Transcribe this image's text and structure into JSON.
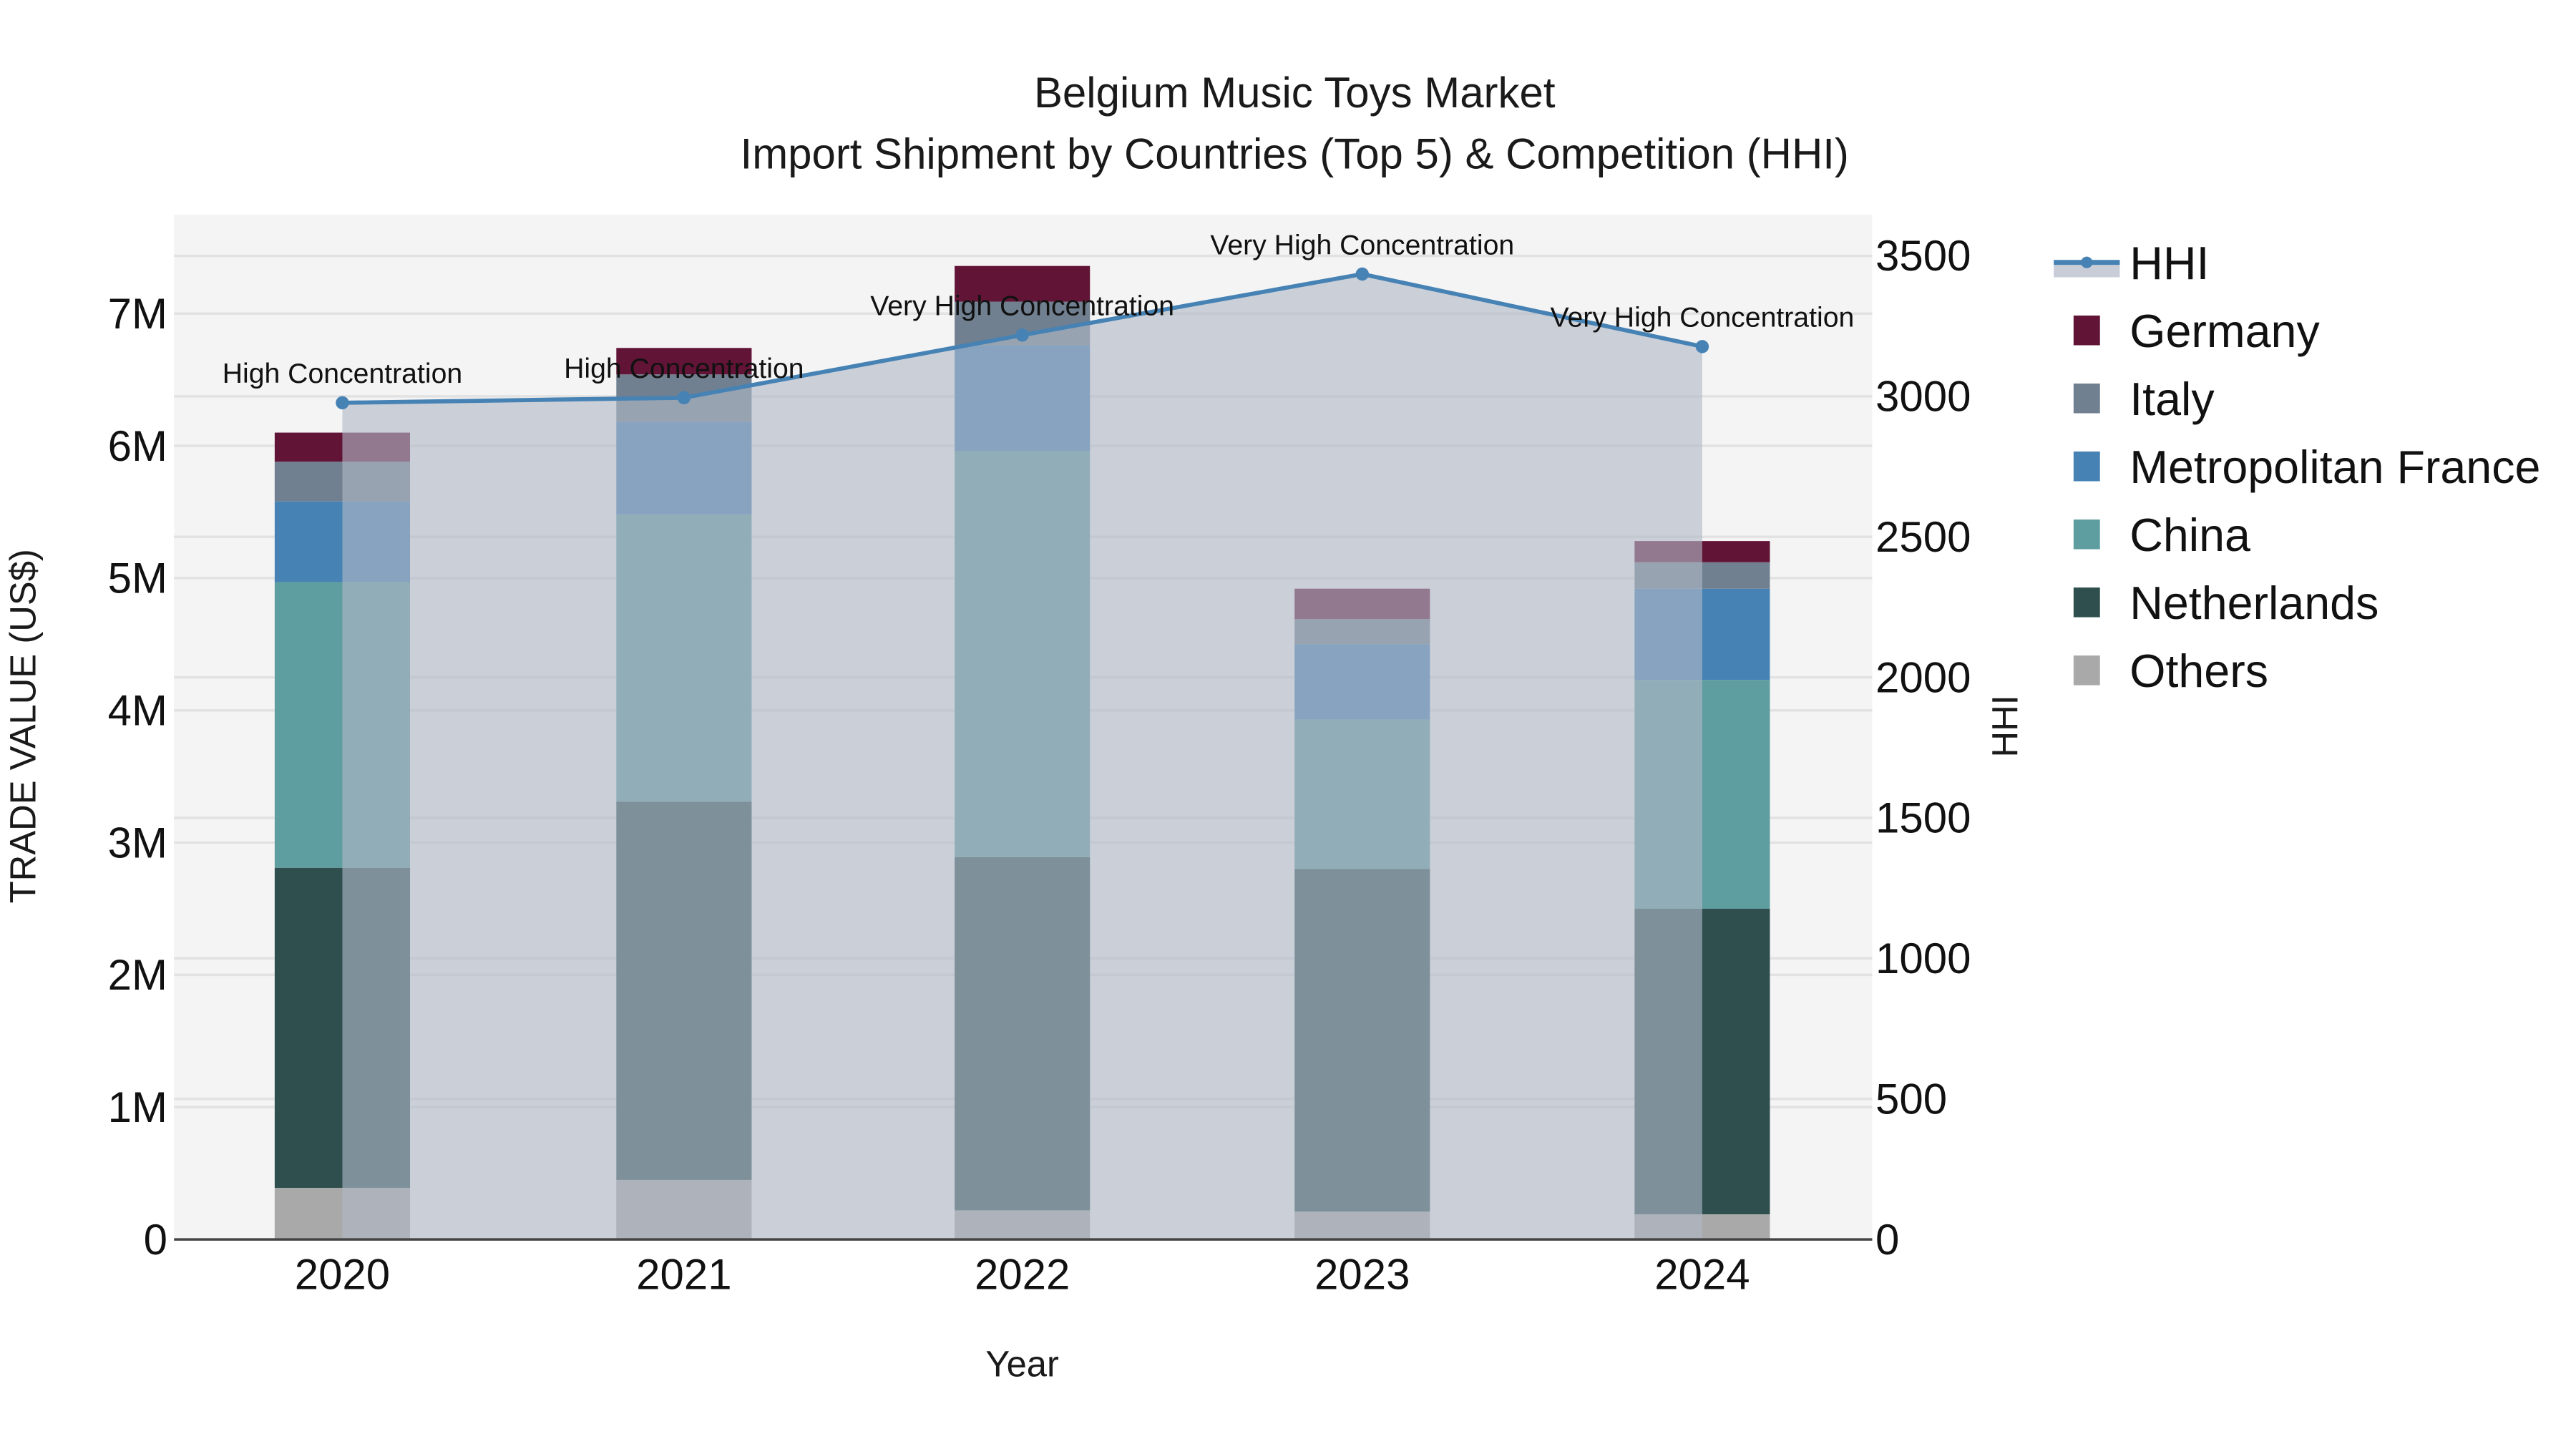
{
  "title_line1": "Belgium Music Toys Market",
  "title_line2": "Import Shipment by Countries (Top 5) & Competition (HHI)",
  "xaxis_title": "Year",
  "yaxis_left_title": "TRADE VALUE (US$)",
  "yaxis_right_title": "HHI",
  "colors": {
    "Germany": "#621436",
    "Italy": "#718090",
    "Metropolitan France": "#4682b4",
    "China": "#5f9ea0",
    "Netherlands": "#2f4f4f",
    "Others": "#a9a9a9",
    "HHI_line": "#4682b4",
    "HHI_fill": "#b0b8c6",
    "plot_bg": "#f4f4f4"
  },
  "legend": [
    {
      "name": "HHI",
      "type": "line"
    },
    {
      "name": "Germany",
      "type": "bar"
    },
    {
      "name": "Italy",
      "type": "bar"
    },
    {
      "name": "Metropolitan France",
      "type": "bar"
    },
    {
      "name": "China",
      "type": "bar"
    },
    {
      "name": "Netherlands",
      "type": "bar"
    },
    {
      "name": "Others",
      "type": "bar"
    }
  ],
  "left_ticks": [
    "0",
    "1M",
    "2M",
    "3M",
    "4M",
    "5M",
    "6M",
    "7M"
  ],
  "right_ticks": [
    "0",
    "500",
    "1000",
    "1500",
    "2000",
    "2500",
    "3000",
    "3500"
  ],
  "chart_data": {
    "type": "bar",
    "stacked": true,
    "title": "Belgium Music Toys Market — Import Shipment by Countries (Top 5) & Competition (HHI)",
    "xlabel": "Year",
    "ylabel": "TRADE VALUE (US$)",
    "y2label": "HHI",
    "categories": [
      "2020",
      "2021",
      "2022",
      "2023",
      "2024"
    ],
    "ylim": [
      0,
      7750000
    ],
    "y2lim": [
      0,
      3650
    ],
    "grid": true,
    "legend_position": "right",
    "series": [
      {
        "name": "Others",
        "values": [
          390000,
          450000,
          220000,
          210000,
          190000
        ]
      },
      {
        "name": "Netherlands",
        "values": [
          2420000,
          2860000,
          2670000,
          2590000,
          2310000
        ]
      },
      {
        "name": "China",
        "values": [
          2160000,
          2170000,
          3070000,
          1130000,
          1730000
        ]
      },
      {
        "name": "Metropolitan France",
        "values": [
          610000,
          700000,
          800000,
          570000,
          690000
        ]
      },
      {
        "name": "Italy",
        "values": [
          300000,
          360000,
          330000,
          190000,
          200000
        ]
      },
      {
        "name": "Germany",
        "values": [
          220000,
          200000,
          270000,
          230000,
          160000
        ]
      }
    ],
    "line_series": {
      "name": "HHI",
      "axis": "right",
      "fill": "tozeroy",
      "values": [
        2977,
        2995,
        3218,
        3435,
        3177
      ],
      "annotations": [
        "High Concentration",
        "High Concentration",
        "Very High Concentration",
        "Very High Concentration",
        "Very High Concentration"
      ]
    },
    "totals": [
      6100000,
      6740000,
      7360000,
      4920000,
      5280000
    ]
  }
}
